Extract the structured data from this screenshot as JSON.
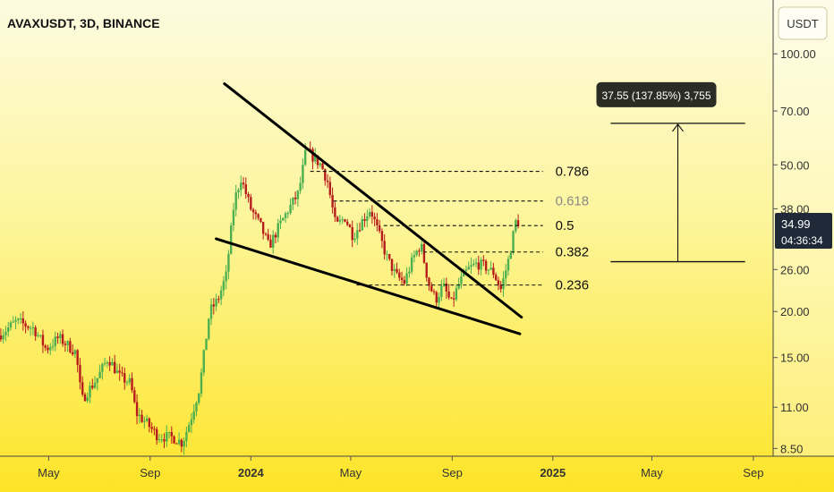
{
  "chart_data": {
    "type": "candlestick",
    "title": "AVAXUSDT, 3D, BINANCE",
    "currency_button": "USDT",
    "y_scale": "log",
    "ylim": [
      8.1,
      140
    ],
    "y_ticks": [
      "100.00",
      "70.00",
      "50.00",
      "38.00",
      "26.00",
      "20.00",
      "15.00",
      "11.00",
      "8.50"
    ],
    "y_tick_values": [
      100,
      70,
      50,
      38,
      26,
      20,
      15,
      11,
      8.5
    ],
    "x_range": [
      "2023-03-03",
      "2025-09-25"
    ],
    "x_ticks": [
      {
        "label": "May",
        "date": "2023-05-01",
        "bold": false
      },
      {
        "label": "Sep",
        "date": "2023-09-01",
        "bold": false
      },
      {
        "label": "2024",
        "date": "2024-01-01",
        "bold": true
      },
      {
        "label": "May",
        "date": "2024-05-01",
        "bold": false
      },
      {
        "label": "Sep",
        "date": "2024-09-01",
        "bold": false
      },
      {
        "label": "2025",
        "date": "2025-01-01",
        "bold": true
      },
      {
        "label": "May",
        "date": "2025-05-01",
        "bold": false
      },
      {
        "label": "Sep",
        "date": "2025-09-01",
        "bold": false
      }
    ],
    "price_path": [
      [
        "2023-03-03",
        17.2
      ],
      [
        "2023-03-25",
        18.8
      ],
      [
        "2023-04-15",
        18.0
      ],
      [
        "2023-04-30",
        15.8
      ],
      [
        "2023-05-15",
        17.0
      ],
      [
        "2023-06-05",
        15.5
      ],
      [
        "2023-06-12",
        11.5
      ],
      [
        "2023-06-20",
        12.2
      ],
      [
        "2023-07-01",
        13.2
      ],
      [
        "2023-07-14",
        15.0
      ],
      [
        "2023-07-28",
        13.3
      ],
      [
        "2023-08-10",
        12.8
      ],
      [
        "2023-08-17",
        10.6
      ],
      [
        "2023-08-29",
        10.0
      ],
      [
        "2023-09-12",
        9.2
      ],
      [
        "2023-10-01",
        9.1
      ],
      [
        "2023-10-12",
        8.8
      ],
      [
        "2023-10-22",
        10.2
      ],
      [
        "2023-11-02",
        12.5
      ],
      [
        "2023-11-14",
        20.0
      ],
      [
        "2023-11-24",
        21.5
      ],
      [
        "2023-12-04",
        25.0
      ],
      [
        "2023-12-14",
        40.0
      ],
      [
        "2023-12-22",
        46.0
      ],
      [
        "2024-01-03",
        38.0
      ],
      [
        "2024-01-15",
        34.0
      ],
      [
        "2024-01-25",
        30.0
      ],
      [
        "2024-02-06",
        34.0
      ],
      [
        "2024-02-18",
        38.0
      ],
      [
        "2024-03-01",
        42.0
      ],
      [
        "2024-03-10",
        55.0
      ],
      [
        "2024-03-20",
        52.0
      ],
      [
        "2024-03-28",
        50.0
      ],
      [
        "2024-04-05",
        45.0
      ],
      [
        "2024-04-15",
        34.0
      ],
      [
        "2024-04-26",
        36.0
      ],
      [
        "2024-05-06",
        32.0
      ],
      [
        "2024-05-16",
        35.0
      ],
      [
        "2024-05-27",
        38.0
      ],
      [
        "2024-06-05",
        33.0
      ],
      [
        "2024-06-16",
        28.0
      ],
      [
        "2024-06-27",
        25.0
      ],
      [
        "2024-07-07",
        24.0
      ],
      [
        "2024-07-18",
        28.0
      ],
      [
        "2024-07-27",
        30.5
      ],
      [
        "2024-08-05",
        24.0
      ],
      [
        "2024-08-14",
        21.5
      ],
      [
        "2024-08-23",
        23.5
      ],
      [
        "2024-09-02",
        21.0
      ],
      [
        "2024-09-12",
        24.0
      ],
      [
        "2024-09-22",
        26.0
      ],
      [
        "2024-10-03",
        27.0
      ],
      [
        "2024-10-13",
        26.5
      ],
      [
        "2024-10-23",
        25.5
      ],
      [
        "2024-11-01",
        23.0
      ],
      [
        "2024-11-10",
        27.5
      ],
      [
        "2024-11-19",
        34.99
      ]
    ],
    "last_price": {
      "value": "34.99",
      "countdown": "04:36:34"
    },
    "trendlines": [
      {
        "from": [
          "2023-11-30",
          83.0
        ],
        "to": [
          "2024-11-24",
          19.3
        ]
      },
      {
        "from": [
          "2023-11-20",
          31.5
        ],
        "to": [
          "2024-11-22",
          17.4
        ]
      }
    ],
    "fib_levels": [
      {
        "label": "0.786",
        "value": 48.0,
        "x_start": "2024-03-13"
      },
      {
        "label": "0.618",
        "value": 39.9,
        "x_start": "2024-04-10",
        "muted": true
      },
      {
        "label": "0.5",
        "value": 34.2,
        "x_start": "2024-06-10"
      },
      {
        "label": "0.382",
        "value": 29.0,
        "x_start": "2024-07-28"
      },
      {
        "label": "0.236",
        "value": 23.6,
        "x_start": "2024-05-08"
      }
    ],
    "fib_x_end": "2024-12-20",
    "fib_label_x": "2025-01-04",
    "measure": {
      "label": "37.55 (137.85%) 3,755",
      "low": 27.3,
      "high": 64.8,
      "x_start": "2025-03-12",
      "x_end": "2025-08-22"
    },
    "colors": {
      "background_top": "#fdfbe1",
      "background_bottom": "#fde427",
      "up_candle": "#4caf50",
      "down_candle": "#b71c1c",
      "fib_line": "#111111",
      "fib_label_muted": "#8a8a8a",
      "trendline": "#000000",
      "price_label_bg": "#1f2937",
      "measure_bg": "#2b2d25",
      "measure_text": "#ffffff"
    }
  }
}
